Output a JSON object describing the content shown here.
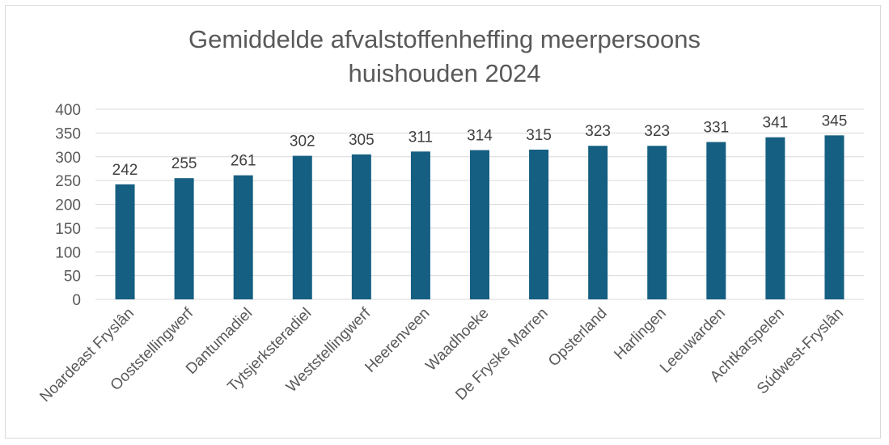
{
  "chart_data": {
    "type": "bar",
    "title_line1": "Gemiddelde afvalstoffenheffing meerpersoons",
    "title_line2": "huishouden 2024",
    "categories": [
      "Noardeast Fryslân",
      "Ooststellingwerf",
      "Dantumadiel",
      "Tytsjerksteradiel",
      "Weststellingwerf",
      "Heerenveen",
      "Waadhoeke",
      "De Fryske Marren",
      "Opsterland",
      "Harlingen",
      "Leeuwarden",
      "Achtkarspelen",
      "Súdwest-Fryslân"
    ],
    "values": [
      242,
      255,
      261,
      302,
      305,
      311,
      314,
      315,
      323,
      323,
      331,
      341,
      345
    ],
    "ylim": [
      0,
      400
    ],
    "yticks": [
      0,
      50,
      100,
      150,
      200,
      250,
      300,
      350,
      400
    ],
    "grid": true,
    "legend": "none",
    "bar_color": "#155F82",
    "xlabel": "",
    "ylabel": ""
  }
}
